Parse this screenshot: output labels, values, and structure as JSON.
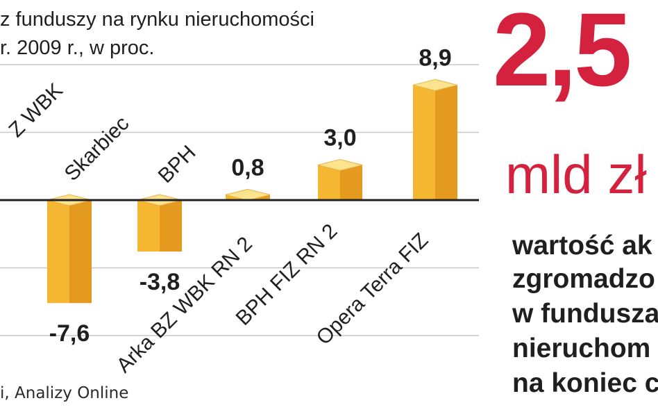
{
  "title_lines": [
    "z funduszy na rynku nieruchomości",
    "r. 2009 r., w proc."
  ],
  "source": "i, Analizy Online",
  "highlight": {
    "value": "2,5",
    "unit": "mld zł",
    "description_lines": [
      "wartość ak",
      "zgromadzo",
      "w fundusza",
      "nieruchom",
      "na koniec c"
    ]
  },
  "colors": {
    "bar_front": "#f5b632",
    "bar_side": "#e39a1e",
    "bar_top": "#fce38e",
    "accent": "#d4213d",
    "gridline": "#c8c8c8",
    "zero_line": "#222222"
  },
  "chart_data": {
    "type": "bar",
    "title": "z funduszy na rynku nieruchomości",
    "subtitle": "r. 2009 r., w proc.",
    "categories": [
      "BZ WBK",
      "Skarbiec",
      "BPH",
      "Arka BZ WBK RN 2",
      "BPH FIZ RN 2",
      "Opera Terra FIZ"
    ],
    "category_labels": [
      "Z WBK",
      "Skarbiec",
      "BPH",
      "Arka BZ WBK RN 2",
      "BPH FIZ RN 2",
      "Opera Terra FIZ"
    ],
    "values": [
      null,
      -7.6,
      -3.8,
      0.8,
      3.0,
      8.9
    ],
    "value_labels": [
      "",
      "-7,6",
      "-3,8",
      "0,8",
      "3,0",
      "8,9"
    ],
    "ylim": [
      -10,
      10
    ],
    "grid": true,
    "xlabel": "",
    "ylabel": ""
  }
}
